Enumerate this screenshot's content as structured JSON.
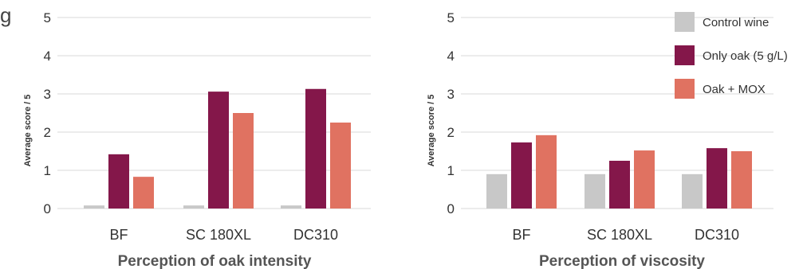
{
  "chart_data": [
    {
      "type": "bar",
      "title": "Perception of oak intensity",
      "ylabel": "Average score / 5",
      "ylim": [
        0,
        5
      ],
      "yticks": [
        0,
        1,
        2,
        3,
        4,
        5
      ],
      "categories": [
        "BF",
        "SC 180XL",
        "DC310"
      ],
      "series": [
        {
          "name": "Control wine",
          "color": "#c8c8c8",
          "values": [
            0.08,
            0.08,
            0.08
          ]
        },
        {
          "name": "Only oak (5 g/L)",
          "color": "#84174a",
          "values": [
            1.42,
            3.06,
            3.13
          ]
        },
        {
          "name": "Oak + MOX",
          "color": "#e07261",
          "values": [
            0.83,
            2.5,
            2.25
          ]
        }
      ],
      "grid": true,
      "legend": "none"
    },
    {
      "type": "bar",
      "title": "Perception of viscosity",
      "ylabel": "Average score / 5",
      "ylim": [
        0,
        5
      ],
      "yticks": [
        0,
        1,
        2,
        3,
        4,
        5
      ],
      "categories": [
        "BF",
        "SC 180XL",
        "DC310"
      ],
      "series": [
        {
          "name": "Control wine",
          "color": "#c8c8c8",
          "values": [
            0.9,
            0.9,
            0.9
          ]
        },
        {
          "name": "Only oak (5 g/L)",
          "color": "#84174a",
          "values": [
            1.73,
            1.25,
            1.58
          ]
        },
        {
          "name": "Oak + MOX",
          "color": "#e07261",
          "values": [
            1.92,
            1.52,
            1.5
          ]
        }
      ],
      "grid": true,
      "legend": "top-right"
    }
  ],
  "page_fragment": "g"
}
